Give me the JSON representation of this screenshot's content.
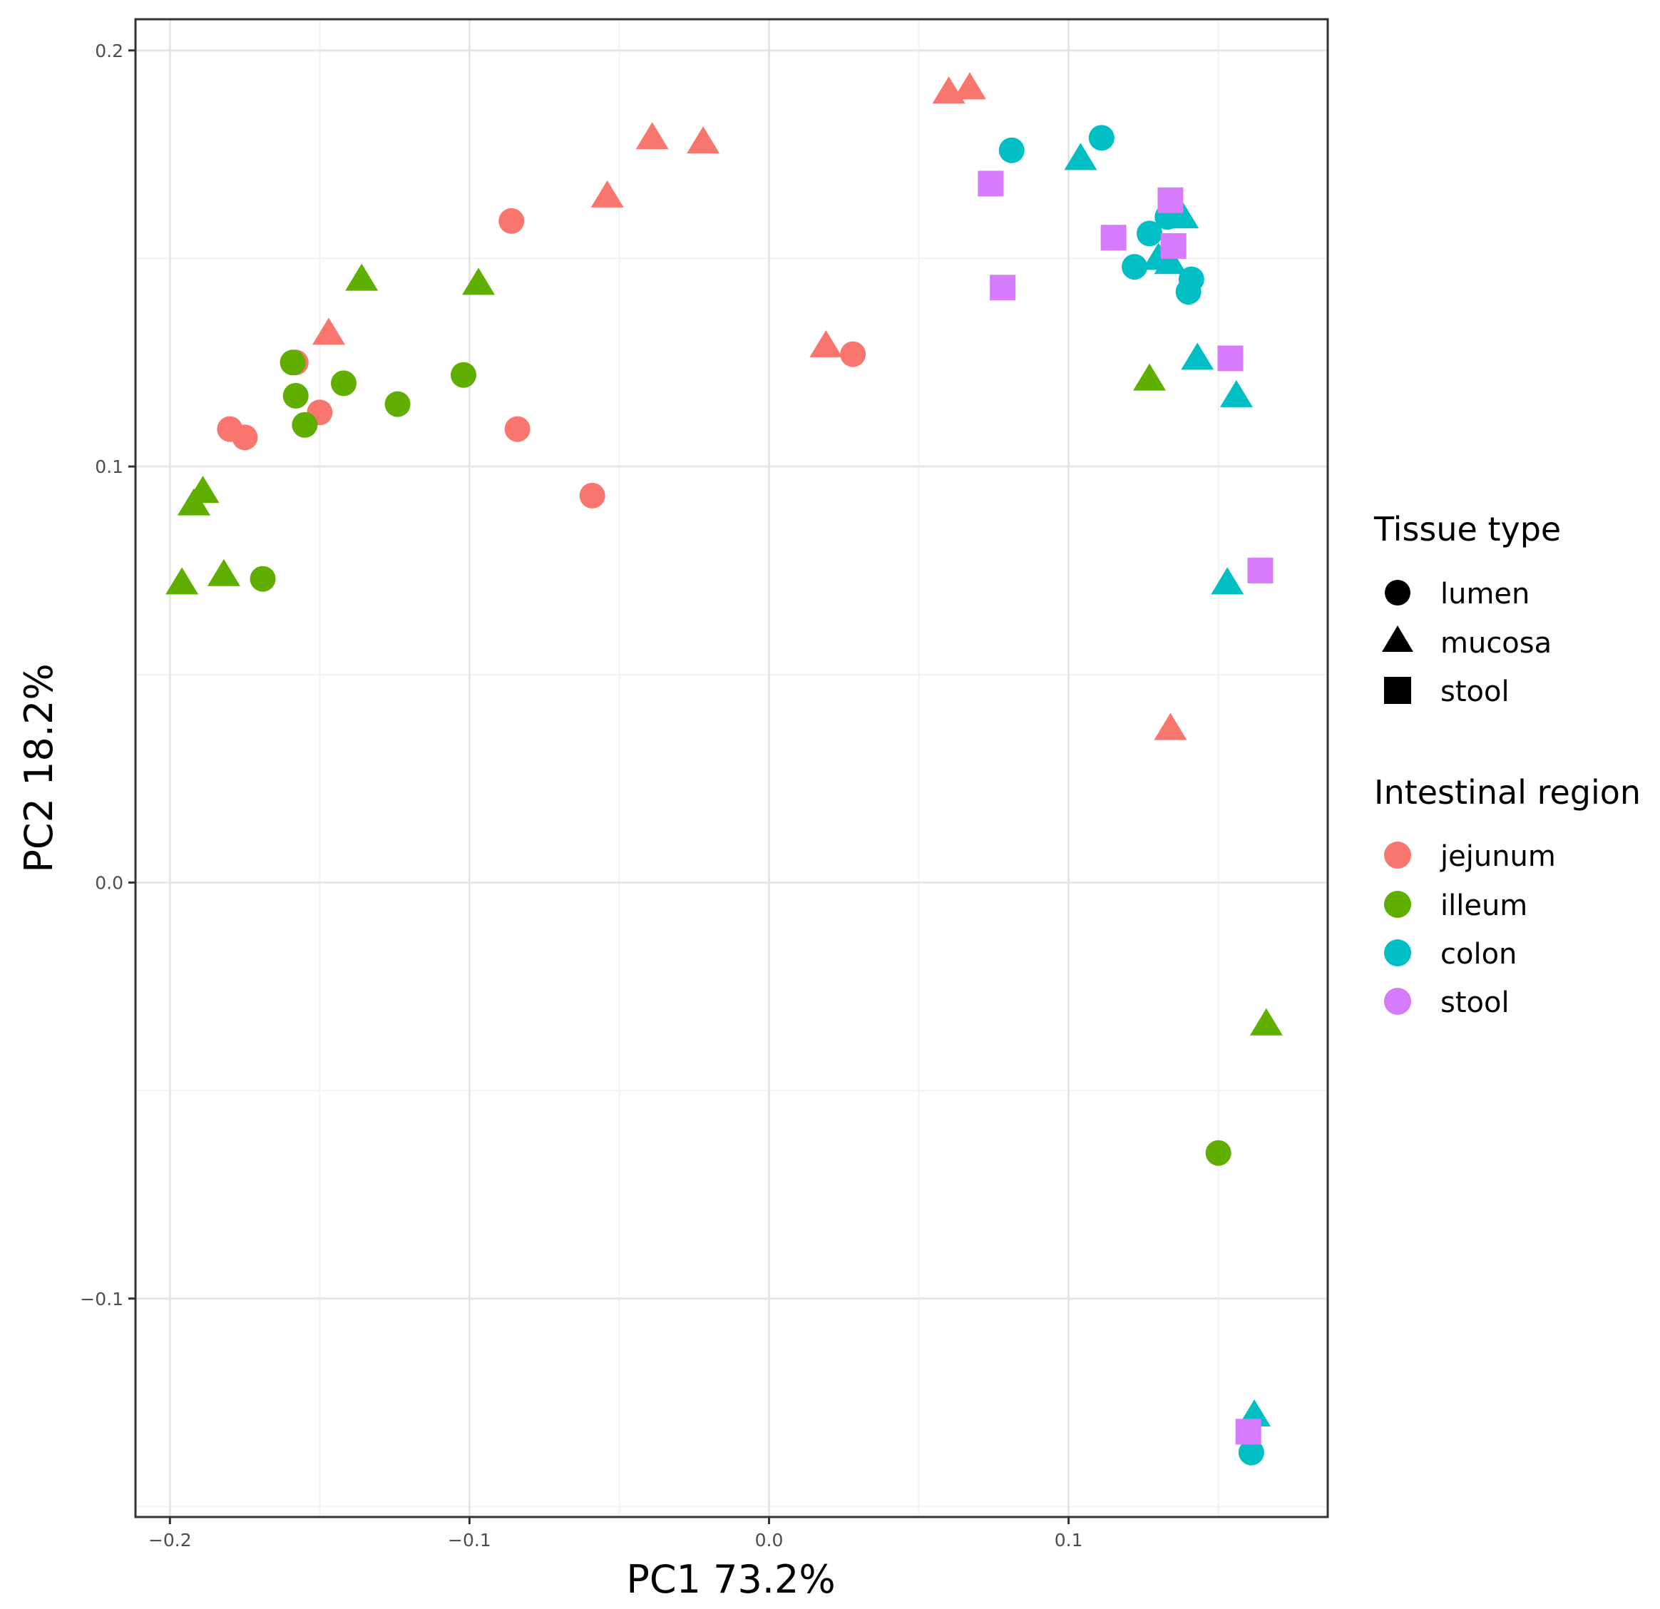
{
  "chart_data": {
    "type": "scatter",
    "xlabel": "PC1 73.2%",
    "ylabel": "PC2 18.2%",
    "xlim": [
      -0.2115,
      0.1865
    ],
    "ylim": [
      -0.1525,
      0.2075
    ],
    "x_ticks": [
      {
        "value": -0.2,
        "label": "−0.2"
      },
      {
        "value": -0.1,
        "label": "−0.1"
      },
      {
        "value": 0.0,
        "label": "0.0"
      },
      {
        "value": 0.1,
        "label": "0.1"
      }
    ],
    "y_ticks": [
      {
        "value": 0.2,
        "label": "0.2"
      },
      {
        "value": 0.1,
        "label": "0.1"
      },
      {
        "value": 0.0,
        "label": "0.0"
      },
      {
        "value": -0.1,
        "label": "−0.1"
      }
    ],
    "grid": true,
    "legend_position": "right",
    "legends": {
      "shape": {
        "title": "Tissue type",
        "entries": [
          {
            "key": "lumen",
            "shape": "circle",
            "label": "lumen"
          },
          {
            "key": "mucosa",
            "shape": "triangle",
            "label": "mucosa"
          },
          {
            "key": "stool",
            "shape": "square",
            "label": "stool"
          }
        ]
      },
      "color": {
        "title": "Intestinal region",
        "entries": [
          {
            "key": "jejunum",
            "color": "#F8766D",
            "label": "jejunum"
          },
          {
            "key": "illeum",
            "color": "#5FAE00",
            "label": "illeum"
          },
          {
            "key": "colon",
            "color": "#00BFC4",
            "label": "colon"
          },
          {
            "key": "stool",
            "color": "#D57BFB",
            "label": "stool"
          }
        ]
      }
    },
    "colors": {
      "jejunum": "#F8766D",
      "illeum": "#5FAE00",
      "colon": "#00BFC4",
      "stool": "#D57BFB",
      "panel_background": "#FFFFFF",
      "grid_major": "#E6E6E6",
      "grid_minor": "#F2F2F2",
      "axis_text": "#4D4D4D"
    },
    "points": [
      {
        "x": 0.06,
        "y": 0.19,
        "region": "jejunum",
        "tissue": "mucosa"
      },
      {
        "x": 0.067,
        "y": 0.191,
        "region": "jejunum",
        "tissue": "mucosa"
      },
      {
        "x": -0.039,
        "y": 0.179,
        "region": "jejunum",
        "tissue": "mucosa"
      },
      {
        "x": -0.022,
        "y": 0.178,
        "region": "jejunum",
        "tissue": "mucosa"
      },
      {
        "x": -0.054,
        "y": 0.165,
        "region": "jejunum",
        "tissue": "mucosa"
      },
      {
        "x": -0.147,
        "y": 0.132,
        "region": "jejunum",
        "tissue": "mucosa"
      },
      {
        "x": 0.019,
        "y": 0.129,
        "region": "jejunum",
        "tissue": "mucosa"
      },
      {
        "x": 0.134,
        "y": 0.037,
        "region": "jejunum",
        "tissue": "mucosa"
      },
      {
        "x": -0.086,
        "y": 0.159,
        "region": "jejunum",
        "tissue": "lumen"
      },
      {
        "x": 0.028,
        "y": 0.127,
        "region": "jejunum",
        "tissue": "lumen"
      },
      {
        "x": -0.158,
        "y": 0.125,
        "region": "jejunum",
        "tissue": "lumen"
      },
      {
        "x": -0.15,
        "y": 0.113,
        "region": "jejunum",
        "tissue": "lumen"
      },
      {
        "x": -0.18,
        "y": 0.109,
        "region": "jejunum",
        "tissue": "lumen"
      },
      {
        "x": -0.175,
        "y": 0.107,
        "region": "jejunum",
        "tissue": "lumen"
      },
      {
        "x": -0.084,
        "y": 0.109,
        "region": "jejunum",
        "tissue": "lumen"
      },
      {
        "x": -0.059,
        "y": 0.093,
        "region": "jejunum",
        "tissue": "lumen"
      },
      {
        "x": -0.136,
        "y": 0.145,
        "region": "illeum",
        "tissue": "mucosa"
      },
      {
        "x": -0.097,
        "y": 0.144,
        "region": "illeum",
        "tissue": "mucosa"
      },
      {
        "x": -0.189,
        "y": 0.094,
        "region": "illeum",
        "tissue": "mucosa"
      },
      {
        "x": -0.192,
        "y": 0.091,
        "region": "illeum",
        "tissue": "mucosa"
      },
      {
        "x": -0.196,
        "y": 0.072,
        "region": "illeum",
        "tissue": "mucosa"
      },
      {
        "x": -0.182,
        "y": 0.074,
        "region": "illeum",
        "tissue": "mucosa"
      },
      {
        "x": 0.127,
        "y": 0.121,
        "region": "illeum",
        "tissue": "mucosa"
      },
      {
        "x": 0.166,
        "y": -0.034,
        "region": "illeum",
        "tissue": "mucosa"
      },
      {
        "x": -0.159,
        "y": 0.125,
        "region": "illeum",
        "tissue": "lumen"
      },
      {
        "x": -0.158,
        "y": 0.117,
        "region": "illeum",
        "tissue": "lumen"
      },
      {
        "x": -0.155,
        "y": 0.11,
        "region": "illeum",
        "tissue": "lumen"
      },
      {
        "x": -0.142,
        "y": 0.12,
        "region": "illeum",
        "tissue": "lumen"
      },
      {
        "x": -0.124,
        "y": 0.115,
        "region": "illeum",
        "tissue": "lumen"
      },
      {
        "x": -0.102,
        "y": 0.122,
        "region": "illeum",
        "tissue": "lumen"
      },
      {
        "x": -0.169,
        "y": 0.073,
        "region": "illeum",
        "tissue": "lumen"
      },
      {
        "x": 0.15,
        "y": -0.065,
        "region": "illeum",
        "tissue": "lumen"
      },
      {
        "x": 0.081,
        "y": 0.176,
        "region": "colon",
        "tissue": "lumen"
      },
      {
        "x": 0.111,
        "y": 0.179,
        "region": "colon",
        "tissue": "lumen"
      },
      {
        "x": 0.133,
        "y": 0.16,
        "region": "colon",
        "tissue": "lumen"
      },
      {
        "x": 0.127,
        "y": 0.156,
        "region": "colon",
        "tissue": "lumen"
      },
      {
        "x": 0.122,
        "y": 0.148,
        "region": "colon",
        "tissue": "lumen"
      },
      {
        "x": 0.141,
        "y": 0.145,
        "region": "colon",
        "tissue": "lumen"
      },
      {
        "x": 0.14,
        "y": 0.142,
        "region": "colon",
        "tissue": "lumen"
      },
      {
        "x": 0.161,
        "y": -0.137,
        "region": "colon",
        "tissue": "lumen"
      },
      {
        "x": 0.104,
        "y": 0.174,
        "region": "colon",
        "tissue": "mucosa"
      },
      {
        "x": 0.138,
        "y": 0.16,
        "region": "colon",
        "tissue": "mucosa"
      },
      {
        "x": 0.13,
        "y": 0.15,
        "region": "colon",
        "tissue": "mucosa"
      },
      {
        "x": 0.134,
        "y": 0.149,
        "region": "colon",
        "tissue": "mucosa"
      },
      {
        "x": 0.143,
        "y": 0.126,
        "region": "colon",
        "tissue": "mucosa"
      },
      {
        "x": 0.156,
        "y": 0.117,
        "region": "colon",
        "tissue": "mucosa"
      },
      {
        "x": 0.153,
        "y": 0.072,
        "region": "colon",
        "tissue": "mucosa"
      },
      {
        "x": 0.162,
        "y": -0.128,
        "region": "colon",
        "tissue": "mucosa"
      },
      {
        "x": 0.074,
        "y": 0.168,
        "region": "stool",
        "tissue": "stool"
      },
      {
        "x": 0.134,
        "y": 0.164,
        "region": "stool",
        "tissue": "stool"
      },
      {
        "x": 0.115,
        "y": 0.155,
        "region": "stool",
        "tissue": "stool"
      },
      {
        "x": 0.135,
        "y": 0.153,
        "region": "stool",
        "tissue": "stool"
      },
      {
        "x": 0.078,
        "y": 0.143,
        "region": "stool",
        "tissue": "stool"
      },
      {
        "x": 0.154,
        "y": 0.126,
        "region": "stool",
        "tissue": "stool"
      },
      {
        "x": 0.164,
        "y": 0.075,
        "region": "stool",
        "tissue": "stool"
      },
      {
        "x": 0.16,
        "y": -0.132,
        "region": "stool",
        "tissue": "stool"
      }
    ]
  }
}
